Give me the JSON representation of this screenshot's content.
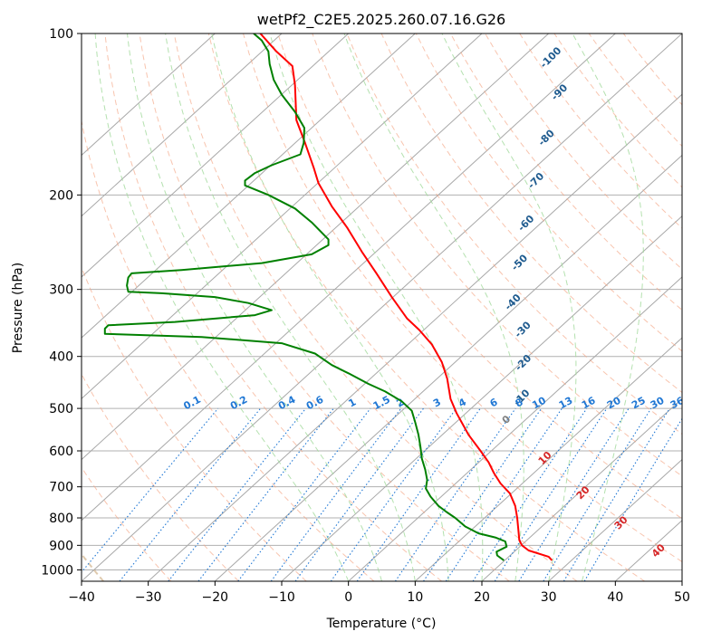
{
  "chart_data": {
    "type": "line",
    "title": "wetPf2_C2E5.2025.260.07.16.G26",
    "xlabel": "Temperature (°C)",
    "ylabel": "Pressure (hPa)",
    "xlim": [
      -40,
      50
    ],
    "ylim": [
      1050,
      100
    ],
    "x_ticks": [
      -40,
      -30,
      -20,
      -10,
      0,
      10,
      20,
      30,
      40,
      50
    ],
    "x_tick_labels": [
      "−40",
      "−30",
      "−20",
      "−10",
      "0",
      "10",
      "20",
      "30",
      "40",
      "50"
    ],
    "y_ticks": [
      1000,
      900,
      800,
      700,
      600,
      500,
      400,
      300,
      200,
      100
    ],
    "y_tick_labels": [
      "1000",
      "900",
      "800",
      "700",
      "600",
      "500",
      "400",
      "300",
      "200",
      "100"
    ],
    "series": [
      {
        "name": "temperature",
        "color": "#ff0000",
        "points": [
          [
            30.5,
            960
          ],
          [
            30.0,
            945
          ],
          [
            27.0,
            920
          ],
          [
            26.0,
            900
          ],
          [
            25.6,
            880
          ],
          [
            25.5,
            850
          ],
          [
            25.3,
            800
          ],
          [
            25.0,
            760
          ],
          [
            24.2,
            720
          ],
          [
            22.8,
            690
          ],
          [
            21.8,
            660
          ],
          [
            21.0,
            630
          ],
          [
            19.8,
            600
          ],
          [
            18.0,
            560
          ],
          [
            16.2,
            510
          ],
          [
            15.3,
            480
          ],
          [
            14.8,
            440
          ],
          [
            14.0,
            410
          ],
          [
            12.5,
            380
          ],
          [
            10.6,
            357
          ],
          [
            8.8,
            340
          ],
          [
            6.5,
            310
          ],
          [
            4.2,
            280
          ],
          [
            2.0,
            255
          ],
          [
            -0.2,
            230
          ],
          [
            -2.5,
            210
          ],
          [
            -4.5,
            190
          ],
          [
            -5.2,
            178
          ],
          [
            -6.5,
            160
          ],
          [
            -7.8,
            145
          ],
          [
            -8.0,
            125
          ],
          [
            -8.4,
            115
          ],
          [
            -10.8,
            108
          ],
          [
            -13.2,
            100
          ]
        ]
      },
      {
        "name": "dewpoint",
        "color": "#008000",
        "points": [
          [
            23.3,
            960
          ],
          [
            22.3,
            940
          ],
          [
            22.2,
            925
          ],
          [
            23.7,
            905
          ],
          [
            23.5,
            885
          ],
          [
            22.0,
            870
          ],
          [
            19.5,
            855
          ],
          [
            17.5,
            830
          ],
          [
            16.0,
            800
          ],
          [
            14.7,
            780
          ],
          [
            13.5,
            760
          ],
          [
            12.3,
            730
          ],
          [
            11.6,
            705
          ],
          [
            11.8,
            680
          ],
          [
            11.5,
            650
          ],
          [
            11.0,
            620
          ],
          [
            10.8,
            590
          ],
          [
            10.5,
            560
          ],
          [
            10.0,
            530
          ],
          [
            9.5,
            505
          ],
          [
            8.0,
            485
          ],
          [
            5.5,
            465
          ],
          [
            3.0,
            450
          ],
          [
            0.0,
            430
          ],
          [
            -2.5,
            415
          ],
          [
            -5.0,
            395
          ],
          [
            -10.0,
            378
          ],
          [
            -22.0,
            368
          ],
          [
            -36.5,
            363
          ],
          [
            -36.5,
            355
          ],
          [
            -36.0,
            350
          ],
          [
            -26.0,
            345
          ],
          [
            -14.0,
            335
          ],
          [
            -11.5,
            328
          ],
          [
            -15.0,
            318
          ],
          [
            -20.0,
            310
          ],
          [
            -28.0,
            305
          ],
          [
            -33.0,
            303
          ],
          [
            -33.2,
            295
          ],
          [
            -33.0,
            285
          ],
          [
            -32.5,
            280
          ],
          [
            -25.0,
            276
          ],
          [
            -13.0,
            268
          ],
          [
            -5.5,
            258
          ],
          [
            -3.0,
            248
          ],
          [
            -3.0,
            242
          ],
          [
            -5.5,
            225
          ],
          [
            -8.0,
            212
          ],
          [
            -12.0,
            200
          ],
          [
            -15.5,
            192
          ],
          [
            -15.5,
            188
          ],
          [
            -14.0,
            182
          ],
          [
            -11.5,
            176
          ],
          [
            -7.2,
            168
          ],
          [
            -6.7,
            160
          ],
          [
            -6.6,
            150
          ],
          [
            -8.0,
            140
          ],
          [
            -10.0,
            130
          ],
          [
            -11.2,
            122
          ],
          [
            -11.8,
            114
          ],
          [
            -12.0,
            108
          ],
          [
            -13.0,
            103
          ],
          [
            -14.2,
            100
          ]
        ]
      }
    ],
    "background_lines": {
      "isotherms_step": 10,
      "dry_adiabats_theta": [
        -30,
        -20,
        -10,
        0,
        10,
        20,
        30,
        40,
        50,
        60,
        70,
        80,
        90,
        100,
        110,
        120,
        130,
        140,
        150,
        160
      ],
      "moist_adiabats_start": [
        0,
        5,
        10,
        15,
        20,
        25,
        30,
        35
      ]
    },
    "annotations": {
      "dry_adiabat_labels": [
        {
          "text": "-100",
          "t": -55.0,
          "p": 112,
          "anchor_x": -100
        },
        {
          "text": "-90",
          "t": -48.0,
          "p": 130,
          "anchor_x": -90
        },
        {
          "text": "-80",
          "t": -42.5,
          "p": 158,
          "anchor_x": -80
        },
        {
          "text": "-70",
          "t": -37.0,
          "p": 190,
          "anchor_x": -70
        },
        {
          "text": "-60",
          "t": -31.5,
          "p": 228,
          "anchor_x": -60
        },
        {
          "text": "-50",
          "t": -26.0,
          "p": 270,
          "anchor_x": -50
        },
        {
          "text": "-40",
          "t": -20.5,
          "p": 320,
          "anchor_x": -40
        },
        {
          "text": "-30",
          "t": -14.5,
          "p": 360,
          "anchor_x": -30
        },
        {
          "text": "-20",
          "t": -9.0,
          "p": 415,
          "anchor_x": -20
        },
        {
          "text": "-10",
          "t": -3.5,
          "p": 482,
          "anchor_x": -10
        }
      ],
      "mixing_ratio_labels": [
        "0.1",
        "0.2",
        "0.4",
        "0.6",
        "1",
        "1.5",
        "2",
        "3",
        "4",
        "6",
        "8",
        "10",
        "13",
        "16",
        "20",
        "25",
        "30",
        "36"
      ],
      "mixing_ratio_x": [
        -23.2,
        -16.2,
        -9.0,
        -4.8,
        0.8,
        5.2,
        8.0,
        13.5,
        17.3,
        22.0,
        25.8,
        28.8,
        32.8,
        36.2,
        40.0,
        43.7,
        46.5,
        49.5
      ],
      "moist_adiabat_labels": [
        {
          "text": "0",
          "t": 24.0,
          "p": 530,
          "color": "#808080"
        },
        {
          "text": "10",
          "t": 29.8,
          "p": 625,
          "color": "#d62728"
        },
        {
          "text": "20",
          "t": 35.5,
          "p": 725,
          "color": "#d62728"
        },
        {
          "text": "30",
          "t": 41.2,
          "p": 825,
          "color": "#d62728"
        },
        {
          "text": "40",
          "t": 46.8,
          "p": 930,
          "color": "#d62728"
        }
      ]
    }
  },
  "colors": {
    "temperature": "#ff0000",
    "dewpoint": "#008000",
    "isotherm": "#808080",
    "dry_adiabat": "#f4a582",
    "moist_adiabat": "#a1d99b",
    "mixing_ratio": "#1f77d4",
    "dry_adiabat_label": "#1f5b8f",
    "outer_adiabat": "#d2b48c"
  }
}
